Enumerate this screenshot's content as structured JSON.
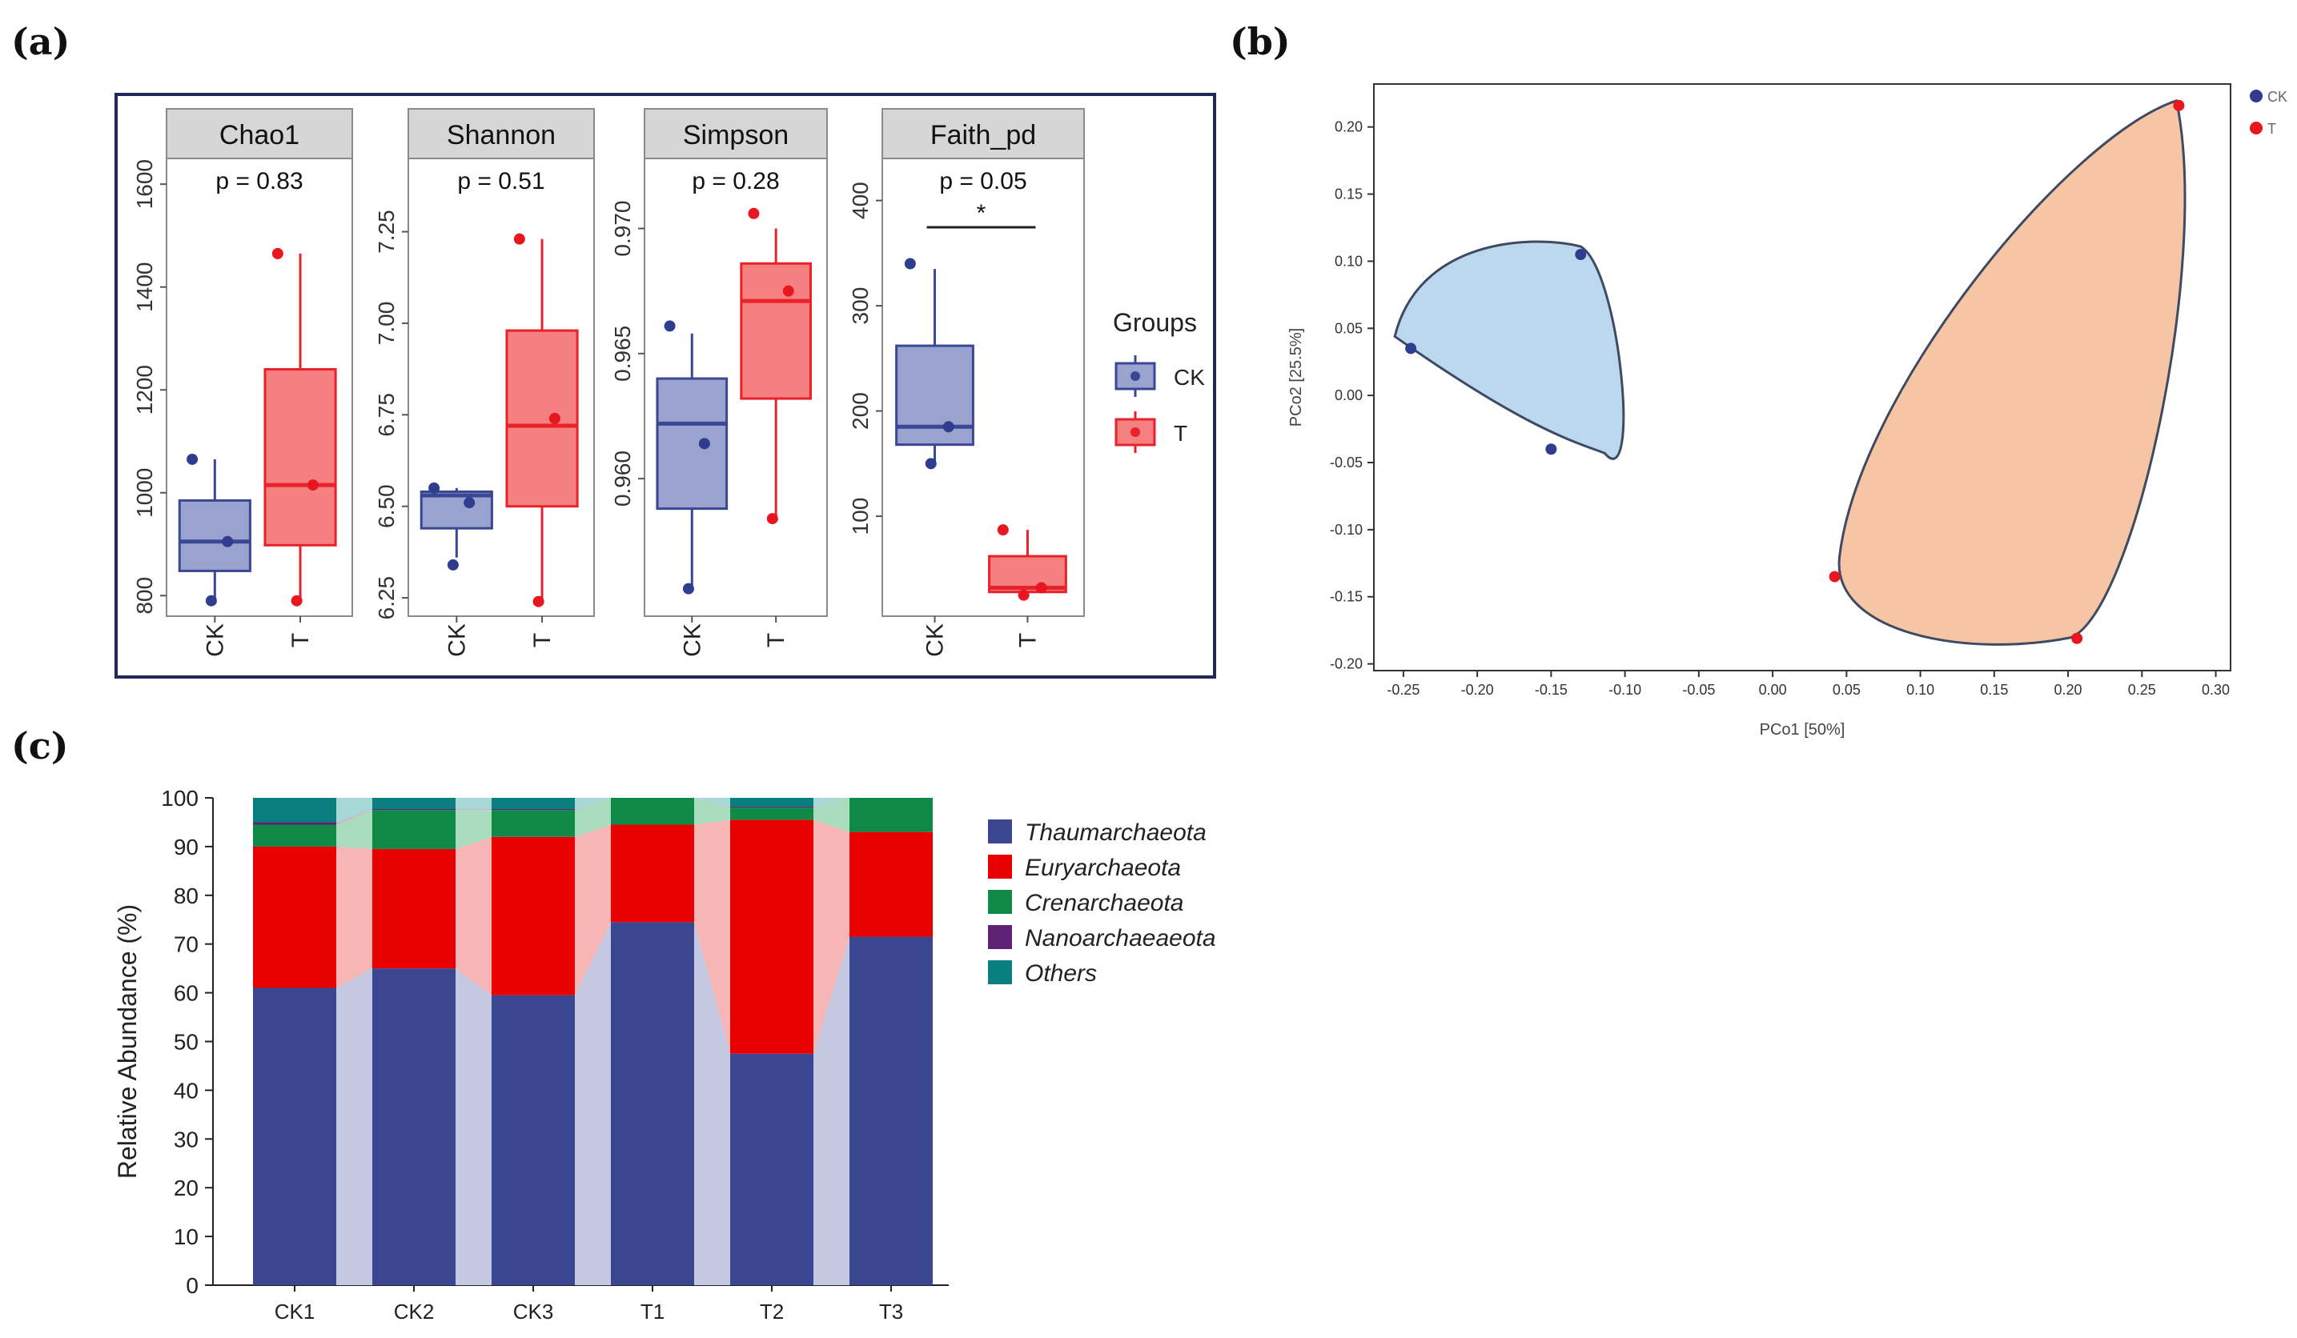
{
  "panel_labels": {
    "a": "(a)",
    "b": "(b)",
    "c": "(c)"
  },
  "colors": {
    "ck_box": "#9aa3cf",
    "ck_line": "#3a4795",
    "ck_point": "#2f3d8f",
    "t_box": "#f48080",
    "t_line": "#e8212b",
    "t_point": "#e8161e",
    "header_bg": "#d6d6d6",
    "frame": "#1f2a5a",
    "pcoa_ck_fill": "#bcd8ef",
    "pcoa_t_fill": "#f6c6a4",
    "pcoa_outline": "#3e4a63",
    "thaum": "#3a4690",
    "eury": "#e90000",
    "cren": "#0e8a46",
    "nano": "#5e2377",
    "others": "#0a7f80"
  },
  "chart_data": [
    {
      "type": "box",
      "id": "a",
      "facets": [
        {
          "title": "Chao1",
          "pvalue": "p = 0.83",
          "categories": [
            "CK",
            "T"
          ],
          "ylim": [
            760,
            1650
          ],
          "ticks": [
            "800",
            "1000",
            "1200",
            "1400",
            "1600"
          ],
          "tick_values": [
            800,
            1000,
            1200,
            1400,
            1600
          ],
          "boxes": [
            {
              "group": "CK",
              "q1": 848,
              "median": 905,
              "q3": 985,
              "wlo": 790,
              "whi": 1065,
              "points": [
                1065,
                905,
                790
              ]
            },
            {
              "group": "T",
              "q1": 898,
              "median": 1015,
              "q3": 1240,
              "wlo": 790,
              "whi": 1465,
              "points": [
                1465,
                1015,
                790
              ]
            }
          ]
        },
        {
          "title": "Shannon",
          "pvalue": "p = 0.51",
          "categories": [
            "CK",
            "T"
          ],
          "ylim": [
            6.2,
            7.45
          ],
          "ticks": [
            "6.25",
            "6.50",
            "6.75",
            "7.00",
            "7.25"
          ],
          "tick_values": [
            6.25,
            6.5,
            6.75,
            7.0,
            7.25
          ],
          "boxes": [
            {
              "group": "CK",
              "q1": 6.44,
              "median": 6.53,
              "q3": 6.54,
              "wlo": 6.36,
              "whi": 6.55,
              "points": [
                6.55,
                6.51,
                6.34
              ]
            },
            {
              "group": "T",
              "q1": 6.5,
              "median": 6.72,
              "q3": 6.98,
              "wlo": 6.24,
              "whi": 7.23,
              "points": [
                7.23,
                6.74,
                6.24
              ]
            }
          ]
        },
        {
          "title": "Simpson",
          "pvalue": "p = 0.28",
          "categories": [
            "CK",
            "T"
          ],
          "ylim": [
            0.9545,
            0.9728
          ],
          "ticks": [
            "0.960",
            "0.965",
            "0.970"
          ],
          "tick_values": [
            0.96,
            0.965,
            0.97
          ],
          "boxes": [
            {
              "group": "CK",
              "q1": 0.9588,
              "median": 0.9622,
              "q3": 0.964,
              "wlo": 0.9556,
              "whi": 0.9658,
              "points": [
                0.9661,
                0.9614,
                0.9556
              ]
            },
            {
              "group": "T",
              "q1": 0.9632,
              "median": 0.9671,
              "q3": 0.9686,
              "wlo": 0.9584,
              "whi": 0.97,
              "points": [
                0.9706,
                0.9675,
                0.9584
              ]
            }
          ]
        },
        {
          "title": "Faith_pd",
          "pvalue": "p = 0.05",
          "significance": "*",
          "categories": [
            "CK",
            "T"
          ],
          "ylim": [
            5,
            440
          ],
          "ticks": [
            "100",
            "200",
            "300",
            "400"
          ],
          "tick_values": [
            100,
            200,
            300,
            400
          ],
          "boxes": [
            {
              "group": "CK",
              "q1": 168,
              "median": 185,
              "q3": 262,
              "wlo": 150,
              "whi": 335,
              "points": [
                340,
                185,
                150
              ]
            },
            {
              "group": "T",
              "q1": 28,
              "median": 32,
              "q3": 62,
              "wlo": 25,
              "whi": 87,
              "points": [
                87,
                32,
                25
              ]
            }
          ]
        }
      ],
      "legend": {
        "title": "Groups",
        "entries": [
          "CK",
          "T"
        ]
      }
    },
    {
      "type": "scatter",
      "id": "b",
      "xlabel": "PCo1 [50%]",
      "ylabel": "PCo2 [25.5%]",
      "xlim": [
        -0.27,
        0.31
      ],
      "ylim": [
        -0.205,
        0.232
      ],
      "xticks": [
        "-0.25",
        "-0.20",
        "-0.15",
        "-0.10",
        "-0.05",
        "0.00",
        "0.05",
        "0.10",
        "0.15",
        "0.20",
        "0.25",
        "0.30"
      ],
      "xtick_values": [
        -0.25,
        -0.2,
        -0.15,
        -0.1,
        -0.05,
        0,
        0.05,
        0.1,
        0.15,
        0.2,
        0.25,
        0.3
      ],
      "yticks": [
        "0.20",
        "0.15",
        "0.10",
        "0.05",
        "0.00",
        "-0.05",
        "-0.10",
        "-0.15",
        "-0.20"
      ],
      "ytick_values": [
        0.2,
        0.15,
        0.1,
        0.05,
        0,
        -0.05,
        -0.1,
        -0.15,
        -0.2
      ],
      "series": [
        {
          "name": "CK",
          "x": [
            -0.245,
            -0.13,
            -0.15
          ],
          "y": [
            0.035,
            0.105,
            -0.04
          ]
        },
        {
          "name": "T",
          "x": [
            0.275,
            0.042,
            0.206
          ],
          "y": [
            0.216,
            -0.135,
            -0.181
          ]
        }
      ],
      "legend": [
        "CK",
        "T"
      ]
    },
    {
      "type": "stacked_bar",
      "id": "c",
      "ylabel": "Relative Abundance (%)",
      "ylim": [
        0,
        100
      ],
      "yticks": [
        "0",
        "10",
        "20",
        "30",
        "40",
        "50",
        "60",
        "70",
        "80",
        "90",
        "100"
      ],
      "ytick_values": [
        0,
        10,
        20,
        30,
        40,
        50,
        60,
        70,
        80,
        90,
        100
      ],
      "categories": [
        "CK1",
        "CK2",
        "CK3",
        "T1",
        "T2",
        "T3"
      ],
      "series": [
        {
          "name": "Thaumarchaeota",
          "values": [
            61,
            65,
            59.5,
            74.5,
            47.5,
            71.5
          ]
        },
        {
          "name": "Euryarchaeota",
          "values": [
            29,
            24.5,
            32.5,
            20,
            48,
            21.5
          ]
        },
        {
          "name": "Crenarchaeota",
          "values": [
            4.5,
            8,
            5.5,
            5.5,
            2.5,
            7
          ]
        },
        {
          "name": "Nanoarchaeaeota",
          "values": [
            0.5,
            0.2,
            0.2,
            0,
            0.2,
            0
          ]
        },
        {
          "name": "Others",
          "values": [
            5,
            2.3,
            2.3,
            0,
            1.8,
            0
          ]
        }
      ]
    }
  ]
}
